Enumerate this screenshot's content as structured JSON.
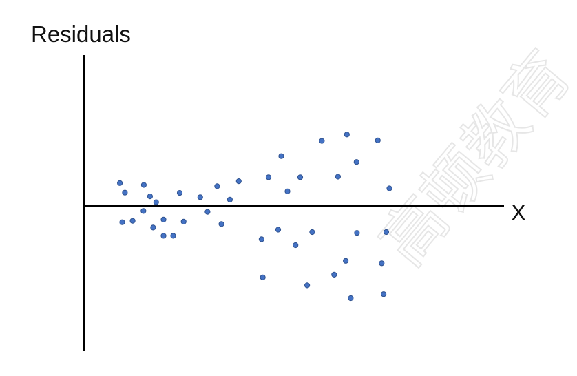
{
  "watermark": "高顿教育",
  "chart_data": {
    "type": "scatter",
    "ylabel": "Residuals",
    "xlabel": "X",
    "ticks": "none",
    "grid": false,
    "point_color": "#4472c4",
    "point_edge_color": "#2f528f",
    "axis_color": "#000000",
    "points": [
      {
        "x": 0.71,
        "y": 0.87
      },
      {
        "x": 0.84,
        "y": 0.51
      },
      {
        "x": 1.33,
        "y": 0.8
      },
      {
        "x": 1.49,
        "y": 0.37
      },
      {
        "x": 1.65,
        "y": 0.15
      },
      {
        "x": 2.26,
        "y": 0.5
      },
      {
        "x": 2.79,
        "y": 0.34
      },
      {
        "x": 3.23,
        "y": 0.75
      },
      {
        "x": 3.56,
        "y": 0.25
      },
      {
        "x": 3.79,
        "y": 0.94
      },
      {
        "x": 4.56,
        "y": 1.09
      },
      {
        "x": 4.89,
        "y": 1.88
      },
      {
        "x": 5.05,
        "y": 0.56
      },
      {
        "x": 5.38,
        "y": 1.09
      },
      {
        "x": 5.94,
        "y": 2.45
      },
      {
        "x": 6.36,
        "y": 1.11
      },
      {
        "x": 6.59,
        "y": 2.69
      },
      {
        "x": 6.84,
        "y": 1.66
      },
      {
        "x": 7.39,
        "y": 2.47
      },
      {
        "x": 7.69,
        "y": 0.67
      },
      {
        "x": 0.77,
        "y": -0.6
      },
      {
        "x": 1.04,
        "y": -0.55
      },
      {
        "x": 1.32,
        "y": -0.18
      },
      {
        "x": 1.57,
        "y": -0.8
      },
      {
        "x": 1.84,
        "y": -0.5
      },
      {
        "x": 1.84,
        "y": -1.11
      },
      {
        "x": 2.09,
        "y": -1.11
      },
      {
        "x": 2.36,
        "y": -0.58
      },
      {
        "x": 2.98,
        "y": -0.21
      },
      {
        "x": 3.34,
        "y": -0.67
      },
      {
        "x": 4.38,
        "y": -1.24
      },
      {
        "x": 4.41,
        "y": -2.67
      },
      {
        "x": 4.81,
        "y": -0.88
      },
      {
        "x": 5.26,
        "y": -1.46
      },
      {
        "x": 5.56,
        "y": -2.97
      },
      {
        "x": 5.69,
        "y": -0.97
      },
      {
        "x": 6.26,
        "y": -2.57
      },
      {
        "x": 6.56,
        "y": -2.05
      },
      {
        "x": 6.69,
        "y": -3.45
      },
      {
        "x": 6.85,
        "y": -1.0
      },
      {
        "x": 7.49,
        "y": -2.14
      },
      {
        "x": 7.54,
        "y": -3.3
      },
      {
        "x": 7.61,
        "y": -0.97
      }
    ],
    "xlim": [
      -0.22,
      10.66
    ],
    "ylim": [
      -5.44,
      5.67
    ]
  }
}
